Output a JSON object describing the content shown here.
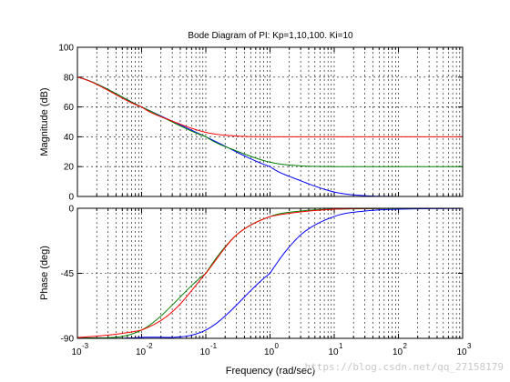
{
  "chart_data": {
    "type": "line",
    "title": "Bode Diagram of PI: Kp=1,10,100. Ki=10",
    "xlabel": "Frequency  (rad/sec)",
    "xscale": "log",
    "xlim": [
      0.001,
      1000
    ],
    "x_tick_labels": [
      {
        "base": "10",
        "exp": "-3"
      },
      {
        "base": "10",
        "exp": "-2"
      },
      {
        "base": "10",
        "exp": "-1"
      },
      {
        "base": "10",
        "exp": "0"
      },
      {
        "base": "10",
        "exp": "1"
      },
      {
        "base": "10",
        "exp": "2"
      },
      {
        "base": "10",
        "exp": "3"
      }
    ],
    "grid": true,
    "colors": {
      "Kp=1": "#0000ff",
      "Kp=10": "#008000",
      "Kp=100": "#ff0000"
    },
    "subplots": [
      {
        "ylabel": "Magnitude (dB)",
        "ylim": [
          0,
          100
        ],
        "y_ticks": [
          "0",
          "20",
          "40",
          "60",
          "80",
          "100"
        ],
        "series": [
          {
            "color": "#0000ff",
            "x": [
              0.001,
              0.01,
              0.1,
              1,
              3,
              10,
              30,
              100,
              1000
            ],
            "y": [
              80,
              60,
              40,
              20,
              10.5,
              3,
              0.5,
              0,
              0
            ]
          },
          {
            "color": "#008000",
            "x": [
              0.001,
              0.01,
              0.1,
              0.3,
              1,
              3,
              10,
              100,
              1000
            ],
            "y": [
              80,
              60,
              40.1,
              30.5,
              23,
              20.5,
              20,
              20,
              20
            ]
          },
          {
            "color": "#ff0000",
            "x": [
              0.001,
              0.01,
              0.03,
              0.1,
              0.3,
              1,
              10,
              1000
            ],
            "y": [
              80,
              60,
              50.5,
              43,
              40.5,
              40,
              40,
              40
            ]
          }
        ]
      },
      {
        "ylabel": "Phase (deg)",
        "ylim": [
          -90,
          0
        ],
        "y_ticks": [
          "-90",
          "-45",
          "0"
        ],
        "series": [
          {
            "color": "#0000ff",
            "x": [
              0.001,
              0.01,
              0.1,
              1,
              3,
              10,
              30,
              100,
              1000
            ],
            "y": [
              -89.9,
              -89.4,
              -84.3,
              -45,
              -18.4,
              -5.7,
              -1.9,
              -0.6,
              -0.1
            ]
          },
          {
            "color": "#008000",
            "x": [
              0.001,
              0.01,
              0.1,
              0.3,
              1,
              3,
              10,
              100,
              1000
            ],
            "y": [
              -89.9,
              -84.3,
              -45,
              -18.4,
              -5.7,
              -1.9,
              -0.6,
              -0.1,
              0
            ]
          },
          {
            "color": "#ff0000",
            "x": [
              0.001,
              0.01,
              0.03,
              0.1,
              0.3,
              1,
              10,
              1000
            ],
            "y": [
              -89.4,
              -84.3,
              -71.6,
              -45,
              -18.4,
              -5.7,
              -0.6,
              0
            ]
          }
        ]
      }
    ]
  },
  "watermark": "https://blog.csdn.net/qq_27158179"
}
